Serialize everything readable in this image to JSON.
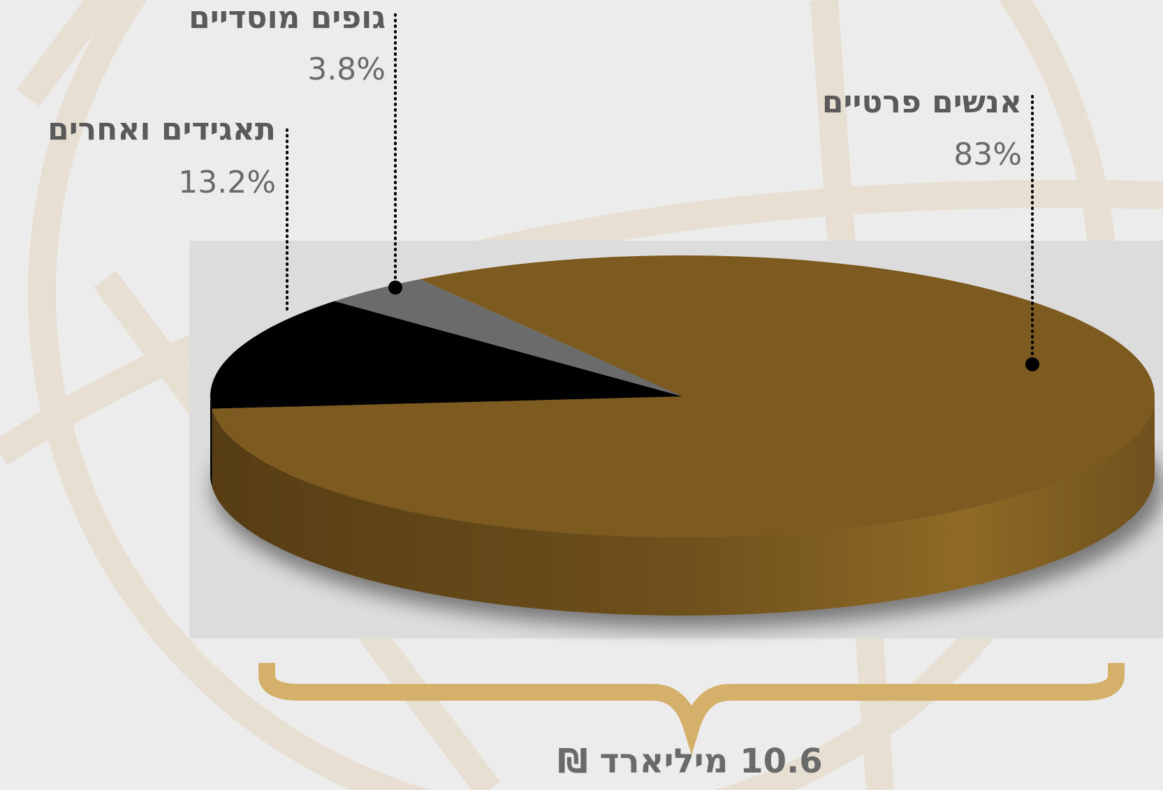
{
  "chart_data": {
    "type": "pie",
    "categories": [
      "אנשים פרטיים",
      "תאגידים ואחרים",
      "גופים מוסדיים"
    ],
    "values": [
      83,
      13.2,
      3.8
    ],
    "value_labels": [
      "83%",
      "13.2%",
      "3.8%"
    ],
    "colors": [
      "#7d5a1f",
      "#000000",
      "#6b6b6b"
    ],
    "total": "10.6 מיליארד ₪"
  }
}
